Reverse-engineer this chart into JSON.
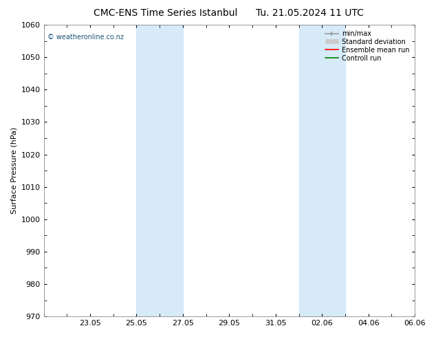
{
  "title_left": "CMC-ENS Time Series Istanbul",
  "title_right": "Tu. 21.05.2024 11 UTC",
  "ylabel": "Surface Pressure (hPa)",
  "ylim": [
    970,
    1060
  ],
  "yticks": [
    970,
    980,
    990,
    1000,
    1010,
    1020,
    1030,
    1040,
    1050,
    1060
  ],
  "xlim": [
    0,
    16
  ],
  "xtick_labels": [
    "23.05",
    "25.05",
    "27.05",
    "29.05",
    "31.05",
    "02.06",
    "04.06",
    "06.06"
  ],
  "xtick_positions": [
    2,
    4,
    6,
    8,
    10,
    12,
    14,
    16
  ],
  "shade_bands": [
    {
      "start": 4,
      "end": 5.3
    },
    {
      "start": 5.7,
      "end": 6.3
    },
    {
      "start": 11.7,
      "end": 12.3
    },
    {
      "start": 12.7,
      "end": 13.3
    }
  ],
  "shade_color": "#d6eaf8",
  "background_color": "#ffffff",
  "watermark": "© weatheronline.co.nz",
  "legend_items": [
    {
      "label": "min/max",
      "color": "#999999",
      "lw": 1.2
    },
    {
      "label": "Standard deviation",
      "color": "#cccccc",
      "lw": 5
    },
    {
      "label": "Ensemble mean run",
      "color": "red",
      "lw": 1.2
    },
    {
      "label": "Controll run",
      "color": "green",
      "lw": 1.2
    }
  ],
  "grid_color": "#cccccc",
  "title_fontsize": 10,
  "axis_fontsize": 8,
  "tick_fontsize": 8
}
